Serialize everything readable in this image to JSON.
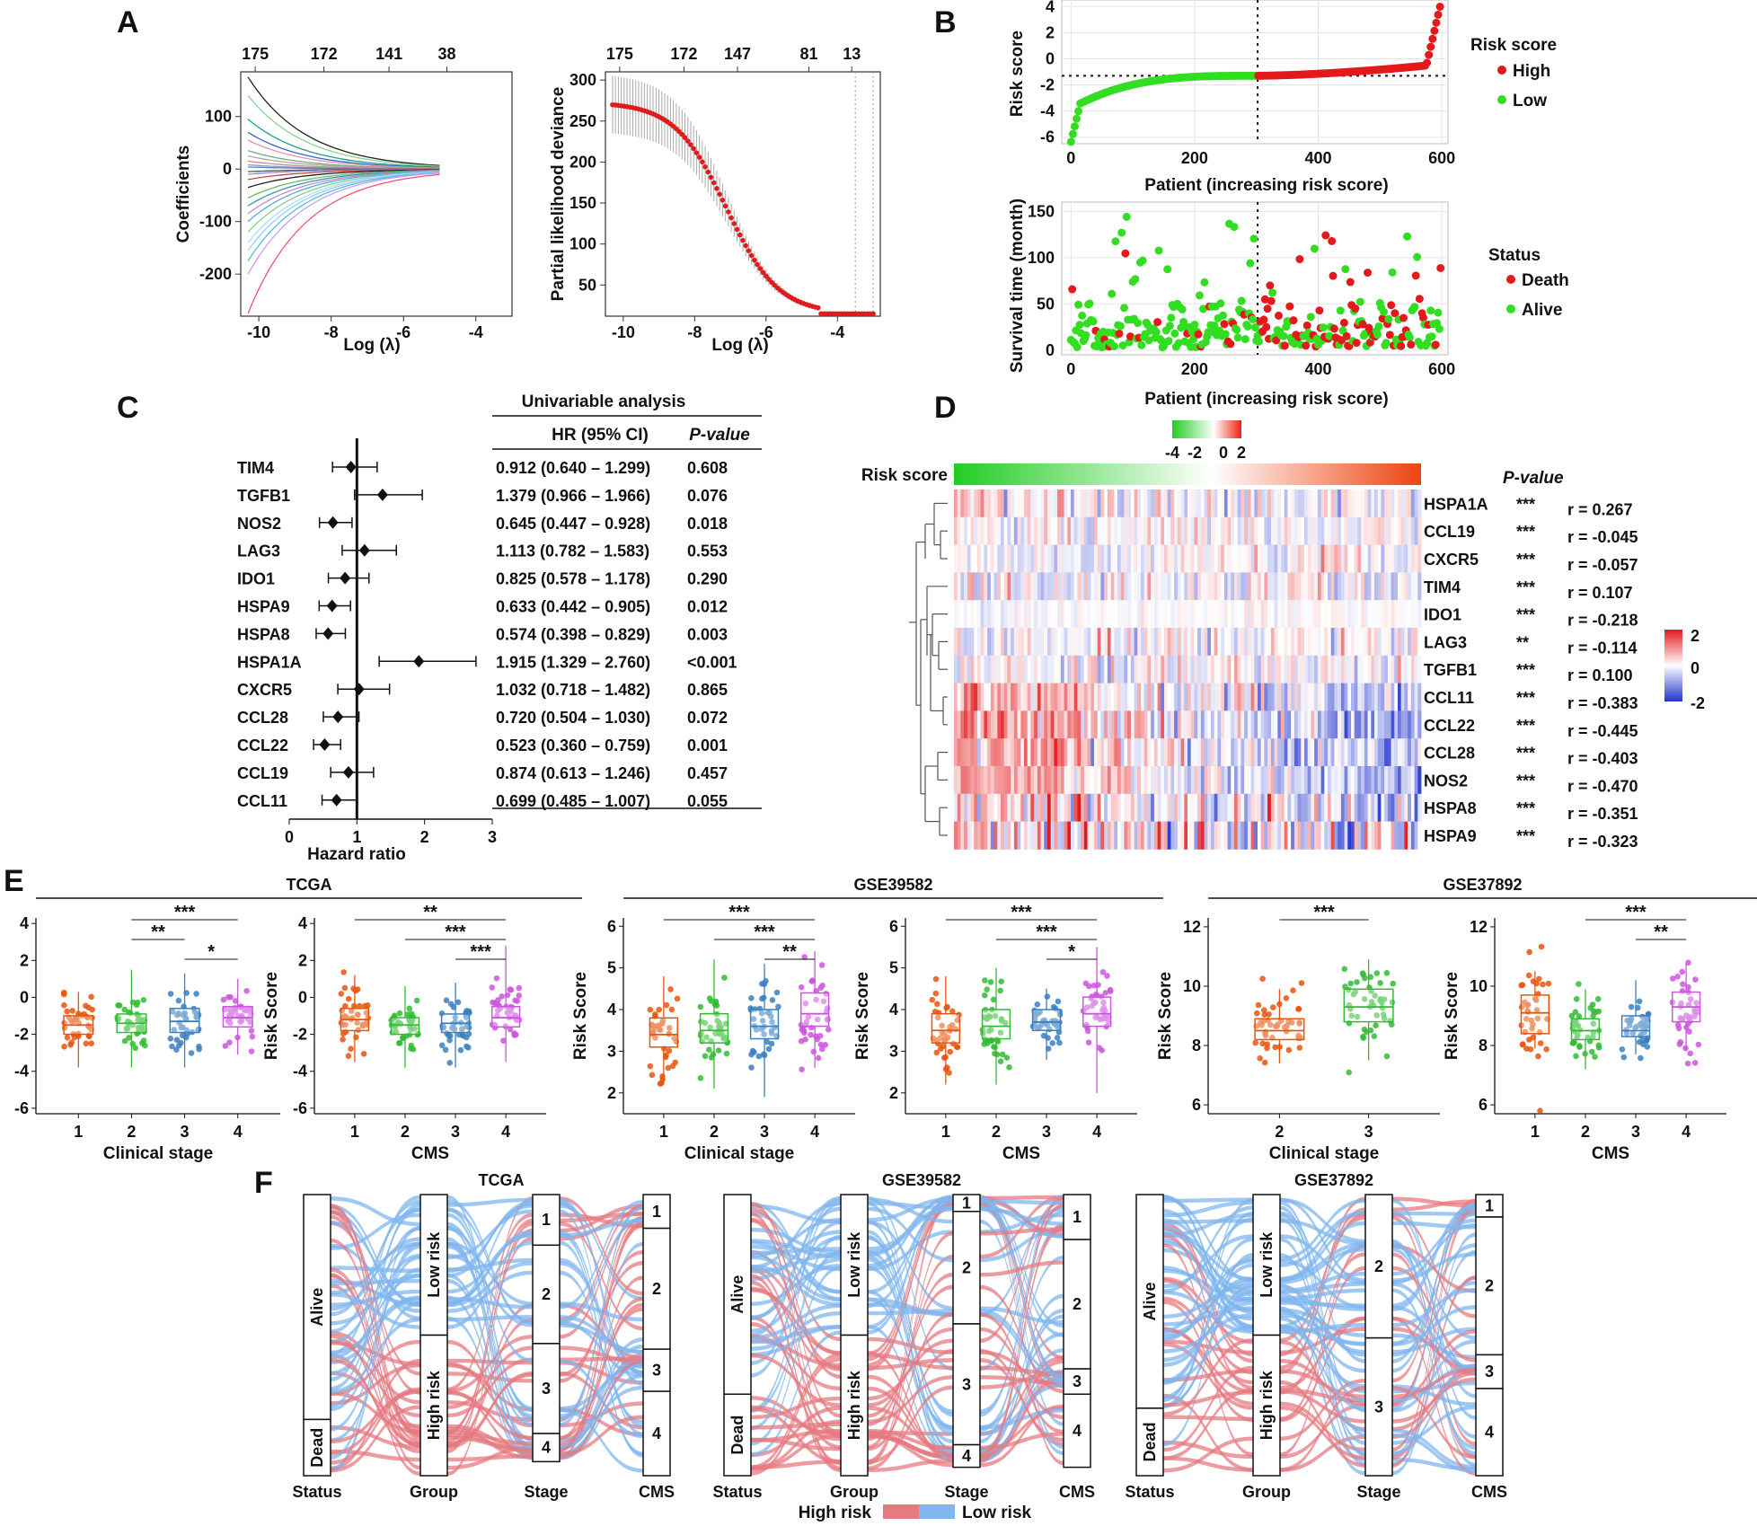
{
  "panelA": {
    "letter": "A",
    "coef": {
      "type": "line",
      "xlabel": "Log (λ)",
      "ylabel": "Coefficients",
      "xticks": [
        "-10",
        "-8",
        "-6",
        "-4"
      ],
      "yticks": [
        "-200",
        "-100",
        "0",
        "100"
      ],
      "top_ticks": [
        "175",
        "172",
        "141",
        "38"
      ],
      "xlim": [
        -10.5,
        -3
      ],
      "ylim": [
        -280,
        185
      ]
    },
    "cv": {
      "type": "line",
      "xlabel": "Log (λ)",
      "ylabel": "Partial likelihood deviance",
      "xticks": [
        "-10",
        "-8",
        "-6",
        "-4"
      ],
      "yticks": [
        "50",
        "100",
        "150",
        "200",
        "250",
        "300"
      ],
      "top_ticks": [
        "175",
        "172",
        "147",
        "81",
        "13"
      ],
      "xlim": [
        -10.5,
        -2.8
      ],
      "ylim": [
        12,
        310
      ]
    }
  },
  "panelB": {
    "letter": "B",
    "risk": {
      "type": "scatter",
      "xlabel": "Patient (increasing risk score)",
      "ylabel": "Risk score",
      "xticks": [
        "0",
        "200",
        "400",
        "600"
      ],
      "yticks": [
        "-6",
        "-4",
        "-2",
        "0",
        "2",
        "4"
      ],
      "legend_title": "Risk score",
      "legend": [
        "High",
        "Low"
      ],
      "colors": {
        "high": "#e31a1c",
        "low": "#33dd22"
      },
      "xlim": [
        -15,
        610
      ],
      "ylim": [
        -6.5,
        4.5
      ],
      "cutoff_x": 302,
      "cutoff_y": -1.3
    },
    "surv": {
      "type": "scatter",
      "xlabel": "Patient (increasing risk score)",
      "ylabel": "Survival time (month)",
      "xticks": [
        "0",
        "200",
        "400",
        "600"
      ],
      "yticks": [
        "0",
        "50",
        "100",
        "150"
      ],
      "legend_title": "Status",
      "legend": [
        "Death",
        "Alive"
      ],
      "xlim": [
        -15,
        610
      ],
      "ylim": [
        -5,
        160
      ],
      "cutoff_x": 302
    }
  },
  "panelC": {
    "letter": "C",
    "header": "Univariable analysis",
    "col_hr": "HR (95% CI)",
    "col_p": "P-value",
    "xlabel": "Hazard ratio",
    "xticks": [
      "0",
      "1",
      "2",
      "3"
    ],
    "genes": [
      "TIM4",
      "TGFB1",
      "NOS2",
      "LAG3",
      "IDO1",
      "HSPA9",
      "HSPA8",
      "HSPA1A",
      "CXCR5",
      "CCL28",
      "CCL22",
      "CCL19",
      "CCL11"
    ],
    "hr_text": [
      "0.912 (0.640 – 1.299)",
      "1.379 (0.966 – 1.966)",
      "0.645 (0.447 – 0.928)",
      "1.113 (0.782 – 1.583)",
      "0.825 (0.578 – 1.178)",
      "0.633 (0.442 – 0.905)",
      "0.574 (0.398 – 0.829)",
      "1.915 (1.329 – 2.760)",
      "1.032 (0.718 – 1.482)",
      "0.720 (0.504 – 1.030)",
      "0.523 (0.360 – 0.759)",
      "0.874 (0.613 – 1.246)",
      "0.699 (0.485 – 1.007)"
    ],
    "p": [
      "0.608",
      "0.076",
      "0.018",
      "0.553",
      "0.290",
      "0.012",
      "0.003",
      "<0.001",
      "0.865",
      "0.072",
      "0.001",
      "0.457",
      "0.055"
    ],
    "hr": [
      0.912,
      1.379,
      0.645,
      1.113,
      0.825,
      0.633,
      0.574,
      1.915,
      1.032,
      0.72,
      0.523,
      0.874,
      0.699
    ],
    "lo": [
      0.64,
      0.966,
      0.447,
      0.782,
      0.578,
      0.442,
      0.398,
      1.329,
      0.718,
      0.504,
      0.36,
      0.613,
      0.485
    ],
    "hi": [
      1.299,
      1.966,
      0.928,
      1.583,
      1.178,
      0.905,
      0.829,
      2.76,
      1.482,
      1.03,
      0.759,
      1.246,
      1.007
    ]
  },
  "panelD": {
    "letter": "D",
    "risk_label": "Risk score",
    "pvalue_label": "P-value",
    "top_scale": [
      "-4",
      "-2",
      "0",
      "2"
    ],
    "side_scale": [
      "2",
      "0",
      "-2"
    ],
    "genes": [
      "HSPA1A",
      "CCL19",
      "CXCR5",
      "TIM4",
      "IDO1",
      "LAG3",
      "TGFB1",
      "CCL11",
      "CCL22",
      "CCL28",
      "NOS2",
      "HSPA8",
      "HSPA9"
    ],
    "stars": [
      "***",
      "***",
      "***",
      "***",
      "***",
      "**",
      "***",
      "***",
      "***",
      "***",
      "***",
      "***",
      "***"
    ],
    "r": [
      "r = 0.267",
      "r = -0.045",
      "r = -0.057",
      "r = 0.107",
      "r = -0.218",
      "r = -0.114",
      "r = 0.100",
      "r = -0.383",
      "r = -0.445",
      "r = -0.403",
      "r = -0.470",
      "r = -0.351",
      "r = -0.323"
    ]
  },
  "panelE": {
    "letter": "E",
    "ylabel": "Risk Score",
    "groups": [
      {
        "title": "TCGA",
        "plots": [
          {
            "xlabel": "Clinical stage",
            "cats": [
              "1",
              "2",
              "3",
              "4"
            ],
            "colors": [
              "#e6550d",
              "#33bb33",
              "#3a7fbf",
              "#cc55dd"
            ],
            "ylim": [
              -6.3,
              4.3
            ],
            "yticks": [
              "-6",
              "-4",
              "-2",
              "0",
              "2",
              "4"
            ],
            "median": [
              -1.5,
              -1.4,
              -1.3,
              -1.1
            ],
            "q1": [
              -2.0,
              -1.9,
              -1.9,
              -1.6
            ],
            "q3": [
              -1.0,
              -0.9,
              -0.6,
              -0.5
            ],
            "wlo": [
              -3.8,
              -3.8,
              -3.8,
              -3.1
            ],
            "whi": [
              0.3,
              1.5,
              1.3,
              1.0
            ],
            "brackets": [
              {
                "from": 1,
                "to": 3,
                "label": "***"
              },
              {
                "from": 1,
                "to": 2,
                "label": "**"
              },
              {
                "from": 2,
                "to": 3,
                "label": "*"
              }
            ]
          },
          {
            "xlabel": "CMS",
            "cats": [
              "1",
              "2",
              "3",
              "4"
            ],
            "colors": [
              "#e6550d",
              "#33bb33",
              "#3a7fbf",
              "#cc55dd"
            ],
            "ylim": [
              -6.3,
              4.3
            ],
            "yticks": [
              "-6",
              "-4",
              "-2",
              "0",
              "2",
              "4"
            ],
            "median": [
              -1.2,
              -1.5,
              -1.4,
              -1.1
            ],
            "q1": [
              -1.8,
              -2.0,
              -1.9,
              -1.6
            ],
            "q3": [
              -0.6,
              -1.1,
              -0.9,
              -0.5
            ],
            "wlo": [
              -3.5,
              -3.8,
              -3.8,
              -3.5
            ],
            "whi": [
              1.2,
              0.6,
              0.8,
              2.8
            ],
            "brackets": [
              {
                "from": 0,
                "to": 3,
                "label": "**"
              },
              {
                "from": 1,
                "to": 3,
                "label": "***"
              },
              {
                "from": 2,
                "to": 3,
                "label": "***"
              }
            ]
          }
        ]
      },
      {
        "title": "GSE39582",
        "plots": [
          {
            "xlabel": "Clinical stage",
            "cats": [
              "1",
              "2",
              "3",
              "4"
            ],
            "colors": [
              "#e6550d",
              "#33bb33",
              "#3a7fbf",
              "#cc55dd"
            ],
            "ylim": [
              1.5,
              6.2
            ],
            "yticks": [
              "2",
              "3",
              "4",
              "5",
              "6"
            ],
            "median": [
              3.4,
              3.5,
              3.6,
              3.9
            ],
            "q1": [
              3.1,
              3.2,
              3.3,
              3.6
            ],
            "q3": [
              3.8,
              3.9,
              4.0,
              4.4
            ],
            "wlo": [
              2.2,
              2.1,
              1.9,
              2.6
            ],
            "whi": [
              4.8,
              5.2,
              5.1,
              5.4
            ],
            "brackets": [
              {
                "from": 0,
                "to": 3,
                "label": "***"
              },
              {
                "from": 1,
                "to": 3,
                "label": "***"
              },
              {
                "from": 2,
                "to": 3,
                "label": "**"
              }
            ]
          },
          {
            "xlabel": "CMS",
            "cats": [
              "1",
              "2",
              "3",
              "4"
            ],
            "colors": [
              "#e6550d",
              "#33bb33",
              "#3a7fbf",
              "#cc55dd"
            ],
            "ylim": [
              1.5,
              6.2
            ],
            "yticks": [
              "2",
              "3",
              "4",
              "5",
              "6"
            ],
            "median": [
              3.5,
              3.6,
              3.7,
              3.9
            ],
            "q1": [
              3.2,
              3.3,
              3.5,
              3.6
            ],
            "q3": [
              3.9,
              4.0,
              4.0,
              4.3
            ],
            "wlo": [
              2.2,
              2.2,
              2.8,
              2.0
            ],
            "whi": [
              4.8,
              5.0,
              4.5,
              5.5
            ],
            "brackets": [
              {
                "from": 0,
                "to": 3,
                "label": "***"
              },
              {
                "from": 1,
                "to": 3,
                "label": "***"
              },
              {
                "from": 2,
                "to": 3,
                "label": "*"
              }
            ]
          }
        ]
      },
      {
        "title": "GSE37892",
        "plots": [
          {
            "xlabel": "Clinical stage",
            "cats": [
              "2",
              "3"
            ],
            "colors": [
              "#e6550d",
              "#33bb33"
            ],
            "ylim": [
              5.7,
              12.3
            ],
            "yticks": [
              "6",
              "8",
              "10",
              "12"
            ],
            "median": [
              8.5,
              9.3
            ],
            "q1": [
              8.2,
              8.8
            ],
            "q3": [
              8.9,
              9.9
            ],
            "wlo": [
              7.4,
              7.5
            ],
            "whi": [
              9.9,
              10.9
            ],
            "brackets": [
              {
                "from": 0,
                "to": 1,
                "label": "***"
              }
            ]
          },
          {
            "xlabel": "CMS",
            "cats": [
              "1",
              "2",
              "3",
              "4"
            ],
            "colors": [
              "#e6550d",
              "#33bb33",
              "#3a7fbf",
              "#cc55dd"
            ],
            "ylim": [
              5.7,
              12.3
            ],
            "yticks": [
              "6",
              "8",
              "10",
              "12"
            ],
            "median": [
              9.1,
              8.5,
              8.5,
              9.3
            ],
            "q1": [
              8.4,
              8.2,
              8.3,
              8.8
            ],
            "q3": [
              9.7,
              8.9,
              9.0,
              9.8
            ],
            "wlo": [
              7.9,
              7.2,
              7.7,
              7.8
            ],
            "whi": [
              10.5,
              9.9,
              10.2,
              10.8
            ],
            "brackets": [
              {
                "from": 1,
                "to": 3,
                "label": "***"
              },
              {
                "from": 2,
                "to": 3,
                "label": "**"
              }
            ]
          }
        ]
      }
    ]
  },
  "panelF": {
    "letter": "F",
    "axes": [
      "Status",
      "Group",
      "Stage",
      "CMS"
    ],
    "legend": [
      "High risk",
      "Low risk"
    ],
    "colors": {
      "high": "#e57a80",
      "low": "#7fb6ee"
    },
    "plots": [
      {
        "title": "TCGA",
        "status": [
          "Alive",
          "Dead"
        ],
        "status_w": [
          0.8,
          0.2
        ],
        "group": [
          "Low risk",
          "High risk"
        ],
        "group_w": [
          0.5,
          0.5
        ],
        "stage": [
          "1",
          "2",
          "3",
          "4"
        ],
        "stage_w": [
          0.18,
          0.35,
          0.32,
          0.1
        ],
        "cms": [
          "1",
          "2",
          "3",
          "4"
        ],
        "cms_w": [
          0.12,
          0.43,
          0.15,
          0.3
        ],
        "high_frac_status": [
          0.42,
          0.78
        ]
      },
      {
        "title": "GSE39582",
        "status": [
          "Alive",
          "Dead"
        ],
        "status_w": [
          0.71,
          0.29
        ],
        "group": [
          "Low risk",
          "High risk"
        ],
        "group_w": [
          0.5,
          0.5
        ],
        "stage": [
          "1",
          "2",
          "3",
          "4"
        ],
        "stage_w": [
          0.06,
          0.4,
          0.43,
          0.08
        ],
        "cms": [
          "1",
          "2",
          "3",
          "4"
        ],
        "cms_w": [
          0.16,
          0.46,
          0.09,
          0.26
        ],
        "high_frac_status": [
          0.4,
          0.78
        ]
      },
      {
        "title": "GSE37892",
        "status": [
          "Alive",
          "Dead"
        ],
        "status_w": [
          0.76,
          0.24
        ],
        "group": [
          "Low risk",
          "High risk"
        ],
        "group_w": [
          0.5,
          0.5
        ],
        "stage": [
          "2",
          "3"
        ],
        "stage_w": [
          0.51,
          0.49
        ],
        "cms": [
          "1",
          "2",
          "3",
          "4"
        ],
        "cms_w": [
          0.08,
          0.49,
          0.12,
          0.31
        ],
        "high_frac_status": [
          0.42,
          0.7
        ]
      }
    ]
  }
}
